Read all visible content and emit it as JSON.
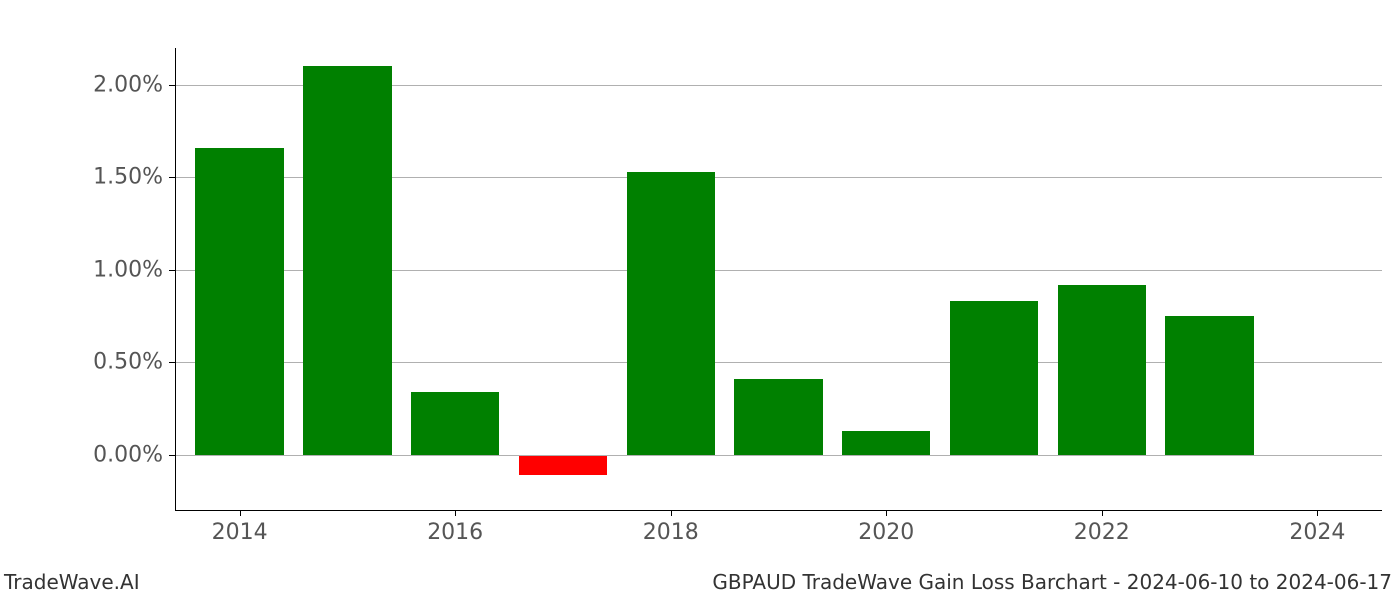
{
  "chart": {
    "type": "bar",
    "background_color": "#ffffff",
    "grid_color": "#b0b0b0",
    "axis_color": "#000000",
    "tick_label_color": "#555555",
    "tick_label_fontsize": 22,
    "positive_color": "#008000",
    "negative_color": "#ff0000",
    "ylim_min": -0.3,
    "ylim_max": 2.2,
    "ytick_values": [
      0.0,
      0.5,
      1.0,
      1.5,
      2.0
    ],
    "ytick_labels": [
      "0.00%",
      "0.50%",
      "1.00%",
      "1.50%",
      "2.00%"
    ],
    "xtick_values": [
      2014,
      2016,
      2018,
      2020,
      2022,
      2024
    ],
    "xtick_labels": [
      "2014",
      "2016",
      "2018",
      "2020",
      "2022",
      "2024"
    ],
    "x_domain_min": 2013.4,
    "x_domain_max": 2024.6,
    "bar_width_units": 0.82,
    "data": [
      {
        "year": 2014,
        "value": 1.66
      },
      {
        "year": 2015,
        "value": 2.1
      },
      {
        "year": 2016,
        "value": 0.34
      },
      {
        "year": 2017,
        "value": -0.11
      },
      {
        "year": 2018,
        "value": 1.53
      },
      {
        "year": 2019,
        "value": 0.41
      },
      {
        "year": 2020,
        "value": 0.13
      },
      {
        "year": 2021,
        "value": 0.83
      },
      {
        "year": 2022,
        "value": 0.92
      },
      {
        "year": 2023,
        "value": 0.75
      }
    ]
  },
  "footer": {
    "left": "TradeWave.AI",
    "right": "GBPAUD TradeWave Gain Loss Barchart - 2024-06-10 to 2024-06-17",
    "fontsize": 20,
    "color": "#333333"
  }
}
